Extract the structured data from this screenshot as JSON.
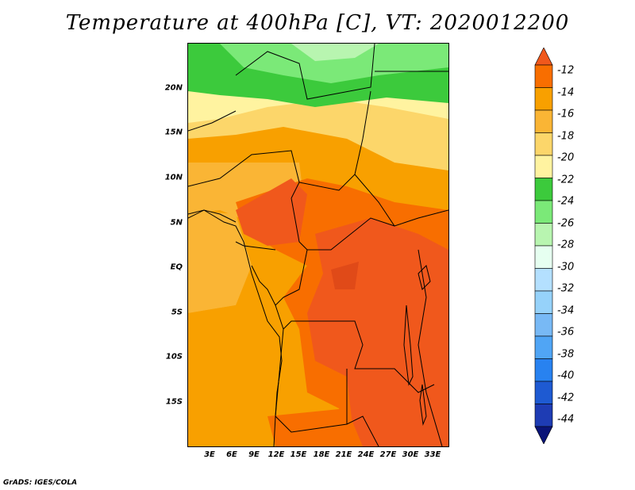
{
  "title": "Temperature at 400hPa [C], VT: 2020012200",
  "credit": "GrADS: IGES/COLA",
  "lat_labels": [
    "20N",
    "15N",
    "10N",
    "5N",
    "EQ",
    "5S",
    "10S",
    "15S"
  ],
  "lon_labels": [
    "3E",
    "6E",
    "9E",
    "12E",
    "15E",
    "18E",
    "21E",
    "24E",
    "27E",
    "30E",
    "33E"
  ],
  "colorbar": {
    "labels": [
      "-12",
      "-14",
      "-16",
      "-18",
      "-20",
      "-22",
      "-24",
      "-26",
      "-28",
      "-30",
      "-32",
      "-34",
      "-36",
      "-38",
      "-40",
      "-42",
      "-44"
    ],
    "colors": [
      "#f0581c",
      "#f86e00",
      "#f8a000",
      "#fab535",
      "#fcd66a",
      "#fff3a0",
      "#3cca3c",
      "#7be978",
      "#b8f5b0",
      "#e6fff0",
      "#b4e0ff",
      "#96d2fa",
      "#78b9f5",
      "#50a5f5",
      "#2882f0",
      "#1e5ad2",
      "#1e3cb4",
      "#0a1478"
    ]
  }
}
